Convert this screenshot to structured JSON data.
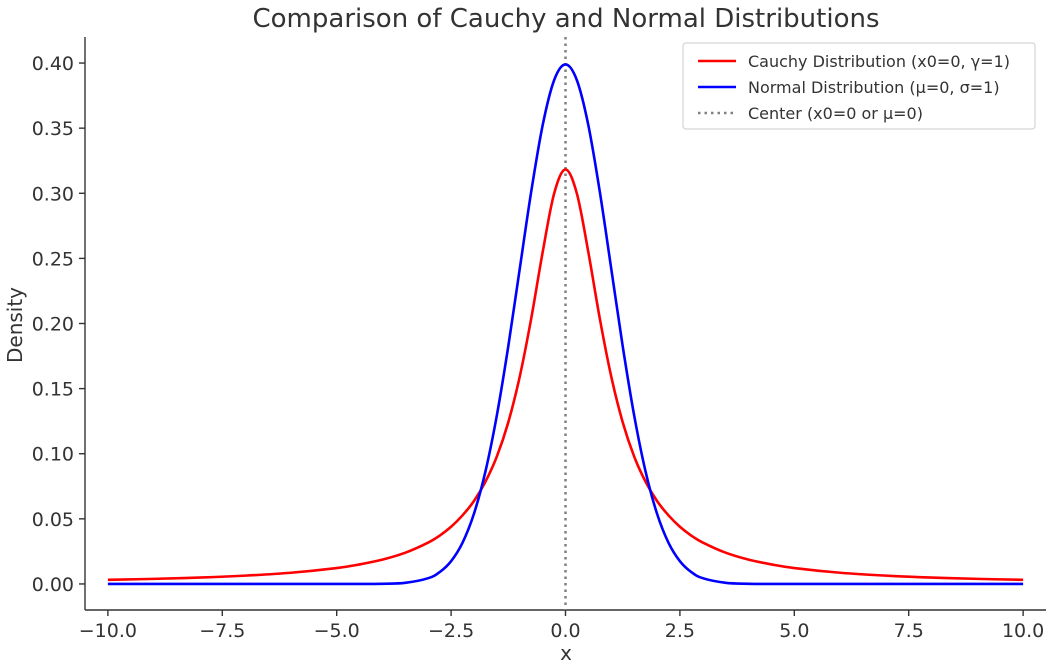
{
  "chart_data": {
    "type": "line",
    "title": "Comparison of Cauchy and Normal Distributions",
    "xlabel": "x",
    "ylabel": "Density",
    "xlim": [
      -10.5,
      10.5
    ],
    "ylim": [
      -0.02,
      0.42
    ],
    "xticks": [
      -10.0,
      -7.5,
      -5.0,
      -2.5,
      0.0,
      2.5,
      5.0,
      7.5,
      10.0
    ],
    "xtick_labels": [
      "−10.0",
      "−7.5",
      "−5.0",
      "−2.5",
      "0.0",
      "2.5",
      "5.0",
      "7.5",
      "10.0"
    ],
    "yticks": [
      0.0,
      0.05,
      0.1,
      0.15,
      0.2,
      0.25,
      0.3,
      0.35,
      0.4
    ],
    "ytick_labels": [
      "0.00",
      "0.05",
      "0.10",
      "0.15",
      "0.20",
      "0.25",
      "0.30",
      "0.35",
      "0.40"
    ],
    "grid": false,
    "legend_position": "top-right",
    "x": [
      -10,
      -9,
      -8,
      -7,
      -6,
      -5,
      -4.5,
      -4,
      -3.5,
      -3,
      -2.75,
      -2.5,
      -2.25,
      -2,
      -1.75,
      -1.5,
      -1.25,
      -1,
      -0.75,
      -0.5,
      -0.25,
      0,
      0.25,
      0.5,
      0.75,
      1,
      1.25,
      1.5,
      1.75,
      2,
      2.25,
      2.5,
      2.75,
      3,
      3.5,
      4,
      4.5,
      5,
      6,
      7,
      8,
      9,
      10
    ],
    "series": [
      {
        "name": "Cauchy Distribution (x0=0, γ=1)",
        "color": "#ff0000",
        "style": "solid",
        "values": [
          0.0032,
          0.0039,
          0.0049,
          0.0064,
          0.0086,
          0.0122,
          0.015,
          0.0187,
          0.024,
          0.0318,
          0.0371,
          0.0439,
          0.0527,
          0.0637,
          0.0785,
          0.0979,
          0.1242,
          0.1592,
          0.2037,
          0.2546,
          0.2996,
          0.3183,
          0.2996,
          0.2546,
          0.2037,
          0.1592,
          0.1242,
          0.0979,
          0.0785,
          0.0637,
          0.0527,
          0.0439,
          0.0371,
          0.0318,
          0.024,
          0.0187,
          0.015,
          0.0122,
          0.0086,
          0.0064,
          0.0049,
          0.0039,
          0.0032
        ]
      },
      {
        "name": "Normal Distribution (μ=0, σ=1)",
        "color": "#0000ff",
        "style": "solid",
        "values": [
          0.0,
          0.0,
          0.0,
          0.0,
          0.0,
          1.5e-06,
          1.6e-05,
          0.000134,
          0.000873,
          0.00443,
          0.00909,
          0.0175,
          0.0317,
          0.054,
          0.0863,
          0.1295,
          0.1826,
          0.242,
          0.3011,
          0.3521,
          0.3867,
          0.3989,
          0.3867,
          0.3521,
          0.3011,
          0.242,
          0.1826,
          0.1295,
          0.0863,
          0.054,
          0.0317,
          0.0175,
          0.00909,
          0.00443,
          0.000873,
          0.000134,
          1.6e-05,
          1.5e-06,
          0.0,
          0.0,
          0.0,
          0.0,
          0.0
        ]
      },
      {
        "name": "Center (x0=0 or μ=0)",
        "color": "#808080",
        "style": "dotted",
        "vertical_line_x": 0
      }
    ]
  }
}
